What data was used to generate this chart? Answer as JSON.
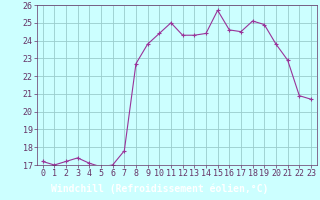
{
  "x": [
    0,
    1,
    2,
    3,
    4,
    5,
    6,
    7,
    8,
    9,
    10,
    11,
    12,
    13,
    14,
    15,
    16,
    17,
    18,
    19,
    20,
    21,
    22,
    23
  ],
  "y": [
    17.2,
    17.0,
    17.2,
    17.4,
    17.1,
    16.9,
    17.0,
    17.8,
    22.7,
    23.8,
    24.4,
    25.0,
    24.3,
    24.3,
    24.4,
    25.7,
    24.6,
    24.5,
    25.1,
    24.9,
    23.8,
    22.9,
    20.9,
    20.7
  ],
  "line_color": "#993399",
  "marker": "+",
  "marker_size": 3,
  "bg_color": "#ccffff",
  "grid_color": "#99cccc",
  "xlabel": "Windchill (Refroidissement éolien,°C)",
  "xlabel_bg": "#9933aa",
  "xlabel_fontsize": 7,
  "ylim": [
    17,
    26
  ],
  "xlim": [
    -0.5,
    23.5
  ],
  "yticks": [
    17,
    18,
    19,
    20,
    21,
    22,
    23,
    24,
    25,
    26
  ],
  "xticks": [
    0,
    1,
    2,
    3,
    4,
    5,
    6,
    7,
    8,
    9,
    10,
    11,
    12,
    13,
    14,
    15,
    16,
    17,
    18,
    19,
    20,
    21,
    22,
    23
  ],
  "tick_fontsize": 6,
  "tick_color": "#663366",
  "axis_label_color": "#ffffff"
}
